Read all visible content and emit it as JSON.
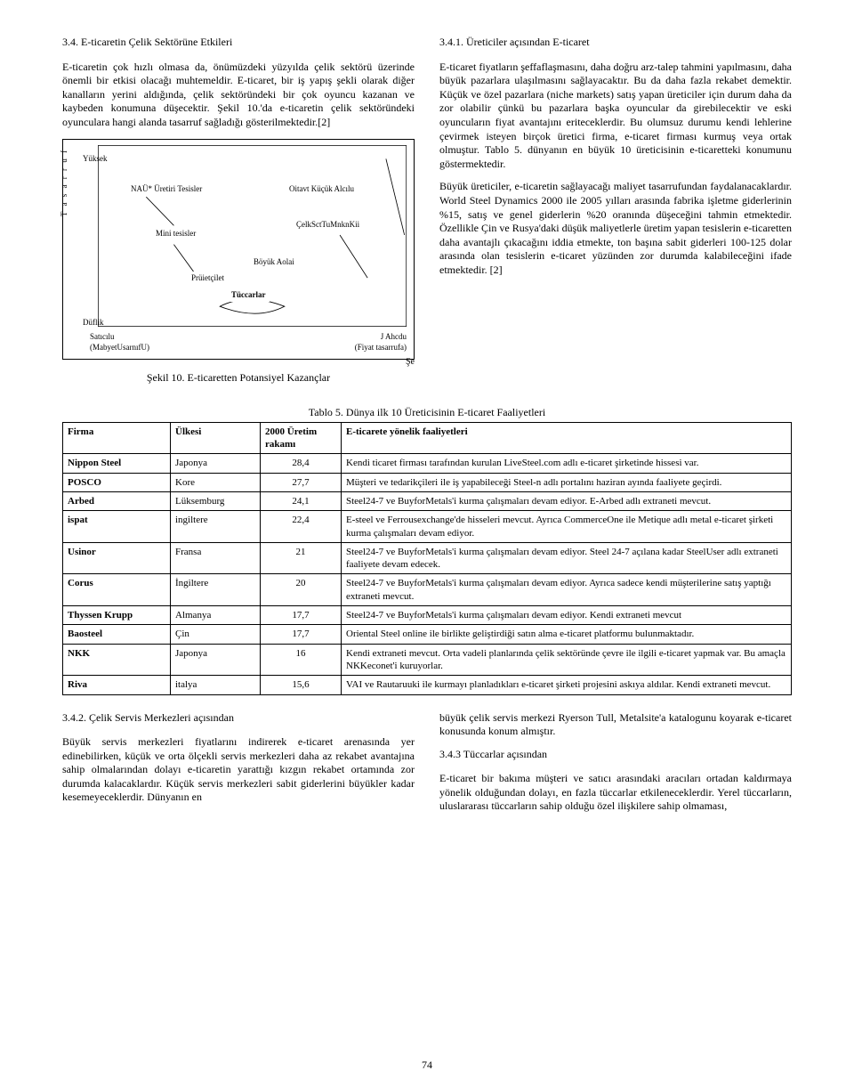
{
  "page_number": "74",
  "left": {
    "heading": "3.4. E-ticaretin Çelik Sektörüne Etkileri",
    "p1": "E-ticaretin çok hızlı olmasa da, önümüzdeki yüzyılda çelik sektörü üzerinde önemli bir etkisi olacağı muhtemeldir. E-ticaret, bir iş yapış şekli olarak diğer kanalların yerini aldığında, çelik sektöründeki bir çok oyuncu kazanan ve kaybeden konumuna düşecektir. Şekil 10.'da e-ticaretin çelik sektöründeki oyunculara hangi alanda tasarruf sağladığı gösterilmektedir.[2]",
    "fig": {
      "y_axis": "T a s a r r u f",
      "y_high": "Yüksek",
      "y_low": "Düflik",
      "n1": "NAÜ* Üretiri Tesisler",
      "n2": "Oitavt Küçük Alcılu",
      "n3": "Mini tesisler",
      "n4": "ÇelkSctTuMnknKii",
      "n5": "Böyük Aolai",
      "n6": "Prüietçilet",
      "n7": "Tüccarlar",
      "x_left_a": "Satıcılu",
      "x_left_b": "(MabyetUsarnıfU)",
      "x_right_a": "J   Ahcdu",
      "x_right_b": "(Fiyat tasarrufa)",
      "corner": "Şe",
      "caption": "Şekil 10. E-ticaretten Potansiyel Kazançlar"
    }
  },
  "right": {
    "heading": "3.4.1.    Üreticiler açısından E-ticaret",
    "p1": "E-ticaret fiyatların şeffaflaşmasını, daha doğru arz-talep tahmini yapılmasını, daha büyük pazarlara ulaşılmasını sağlayacaktır. Bu da daha fazla rekabet demektir. Küçük ve özel pazarlara (niche markets) satış yapan üreticiler için durum daha da zor olabilir çünkü bu pazarlara başka oyuncular da girebilecektir ve eski oyuncuların fiyat avantajını eriteceklerdir. Bu olumsuz durumu kendi lehlerine çevirmek isteyen birçok üretici firma, e-ticaret firması kurmuş veya ortak olmuştur. Tablo 5. dünyanın en büyük 10 üreticisinin e-ticaretteki konumunu göstermektedir.",
    "p2": "Büyük üreticiler, e-ticaretin sağlayacağı maliyet tasarrufundan faydalanacaklardır. World Steel Dynamics 2000 ile 2005 yılları arasında fabrika işletme giderlerinin %15, satış ve genel giderlerin %20 oranında düşeceğini tahmin etmektedir. Özellikle Çin ve Rusya'daki düşük maliyetlerle üretim yapan tesislerin e-ticaretten daha avantajlı çıkacağını iddia etmekte, ton başına sabit giderleri 100-125 dolar arasında olan tesislerin e-ticaret yüzünden zor durumda kalabileceğini ifade etmektedir. [2]"
  },
  "table": {
    "caption": "Tablo 5. Dünya ilk 10 Üreticisinin E-ticaret Faaliyetleri",
    "headers": [
      "Firma",
      "Ülkesi",
      "2000 Üretim rakamı",
      "E-ticarete yönelik faaliyetleri"
    ],
    "rows": [
      [
        "Nippon Steel",
        "Japonya",
        "28,4",
        "Kendi ticaret firması tarafından kurulan LiveSteel.com adlı e-ticaret şirketinde hissesi var."
      ],
      [
        "POSCO",
        "Kore",
        "27,7",
        "Müşteri ve tedarikçileri ile iş yapabileceği Steel-n adlı portalını haziran ayında faaliyete geçirdi."
      ],
      [
        "Arbed",
        "Lüksemburg",
        "24,1",
        "Steel24-7 ve BuyforMetals'i kurma çalışmaları devam ediyor. E-Arbed adlı extraneti mevcut."
      ],
      [
        "ispat",
        "ingiltere",
        "22,4",
        "E-steel ve Ferrousexchange'de hisseleri mevcut. Ayrıca CommerceOne ile Metique adlı metal e-ticaret şirketi kurma çalışmaları devam ediyor."
      ],
      [
        "Usinor",
        "Fransa",
        "21",
        "Steel24-7 ve BuyforMetals'i kurma çalışmaları devam ediyor. Steel 24-7 açılana kadar SteelUser adlı extraneti faaliyete devam edecek."
      ],
      [
        "Corus",
        "İngiltere",
        "20",
        "Steel24-7 ve BuyforMetals'i kurma çalışmaları devam ediyor. Ayrıca sadece kendi müşterilerine satış yaptığı extraneti mevcut."
      ],
      [
        "Thyssen Krupp",
        "Almanya",
        "17,7",
        "Steel24-7 ve BuyforMetals'i kurma çalışmaları devam ediyor. Kendi extraneti mevcut"
      ],
      [
        "Baosteel",
        "Çin",
        "17,7",
        "Oriental Steel online ile birlikte geliştirdiği satın alma e-ticaret platformu bulunmaktadır."
      ],
      [
        "NKK",
        "Japonya",
        "16",
        "Kendi extraneti mevcut. Orta vadeli planlarında çelik sektöründe çevre ile ilgili e-ticaret yapmak var. Bu amaçla NKKeconet'i kuruyorlar."
      ],
      [
        "Riva",
        "italya",
        "15,6",
        "VAI ve Rautaruuki ile kurmayı planladıkları e-ticaret şirketi projesini askıya aldılar. Kendi extraneti mevcut."
      ]
    ]
  },
  "bottom": {
    "left_h": "3.4.2.     Çelik Servis Merkezleri açısından",
    "left_p": "Büyük servis merkezleri fiyatlarını indirerek e-ticaret arenasında yer edinebilirken, küçük ve orta ölçekli servis merkezleri daha az rekabet avantajına sahip olmalarından dolayı e-ticaretin yarattığı kızgın rekabet ortamında zor durumda kalacaklardır. Küçük servis merkezleri sabit giderlerini büyükler kadar kesemeyeceklerdir. Dünyanın en",
    "right_p1": "büyük çelik servis merkezi Ryerson Tull, Metalsite'a katalogunu koyarak e-ticaret konusunda konum almıştır.",
    "right_h": "3.4.3      Tüccarlar açısından",
    "right_p2": "E-ticaret bir bakıma müşteri ve satıcı arasındaki aracıları ortadan kaldırmaya yönelik olduğundan dolayı, en fazla tüccarlar etkileneceklerdir. Yerel tüccarların, uluslararası tüccarların sahip olduğu özel ilişkilere sahip olmaması,"
  }
}
